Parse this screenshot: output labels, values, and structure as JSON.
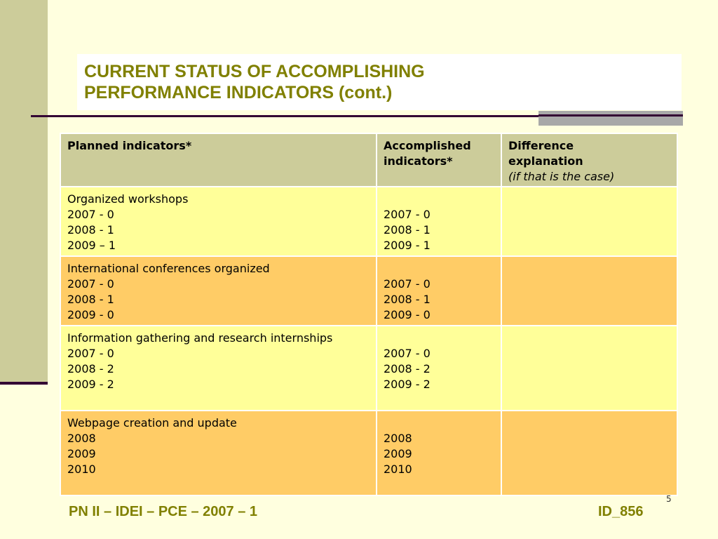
{
  "title": {
    "line1": "CURRENT STATUS OF ACCOMPLISHING",
    "line2": "PERFORMANCE INDICATORS (cont.)"
  },
  "table": {
    "headers": {
      "planned": "Planned indicators*",
      "accomplished_line1": "Accomplished",
      "accomplished_line2": "indicators*",
      "difference_line1": "Difference",
      "difference_line2": "explanation",
      "difference_note": "(if that is the case)"
    },
    "rows": [
      {
        "planned": [
          "Organized workshops",
          "2007 - 0",
          "2008 - 1",
          "2009 – 1"
        ],
        "accomplished": [
          "2007 - 0",
          "2008 - 1",
          "2009 - 1"
        ],
        "difference": ""
      },
      {
        "planned": [
          "International conferences organized",
          "2007 - 0",
          "2008 - 1",
          "2009 - 0"
        ],
        "accomplished": [
          "2007 - 0",
          "2008 - 1",
          "2009 - 0"
        ],
        "difference": ""
      },
      {
        "planned": [
          "Information gathering and research internships",
          "2007 - 0",
          "2008 - 2",
          "2009 - 2"
        ],
        "accomplished": [
          "2007 - 0",
          "2008 - 2",
          "2009 - 2"
        ],
        "difference": ""
      },
      {
        "planned": [
          "Webpage creation and update",
          "2008",
          "2009",
          "2010"
        ],
        "accomplished": [
          "2008",
          "2009",
          "2010"
        ],
        "difference": ""
      }
    ]
  },
  "footer": {
    "left": "PN II – IDEI – PCE – 2007 – 1",
    "right": "ID_856",
    "slide_number": "5"
  },
  "colors": {
    "background": "#FFFFDF",
    "accent_olive": "#808000",
    "header_fill": "#CCCC9A",
    "row_light": "#FFFF99",
    "row_dark": "#FFCC66",
    "rule": "#330033"
  }
}
